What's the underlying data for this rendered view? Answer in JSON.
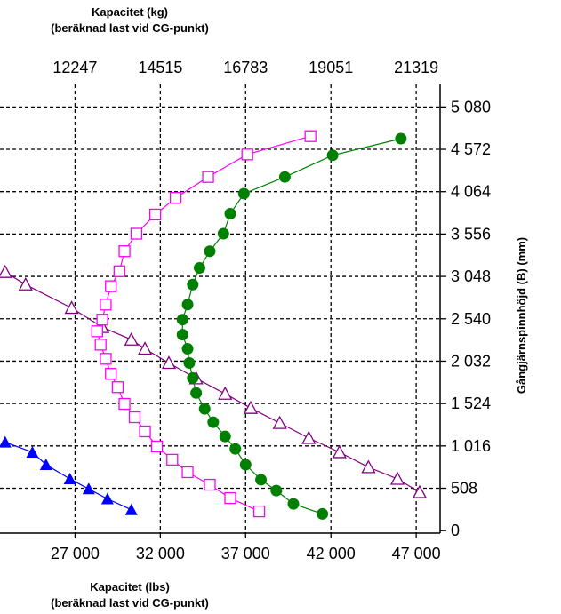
{
  "chart_data": {
    "type": "scatter",
    "title_top": [
      "Kapacitet (kg)",
      "(beräknad last vid CG-punkt)"
    ],
    "title_bottom": [
      "Kapacitet (lbs)",
      "(beräknad last vid CG-punkt)"
    ],
    "ylabel": "Gångjärnspinnhöjd (B) (mm)",
    "x_bottom": {
      "ticks": [
        27000,
        32000,
        37000,
        42000,
        47000
      ],
      "tick_labels": [
        "27 000",
        "32 000",
        "37 000",
        "42 000",
        "47 000"
      ],
      "range": [
        22600,
        48400
      ]
    },
    "x_top": {
      "ticks": [
        27000,
        32000,
        37000,
        42000,
        47000
      ],
      "tick_labels": [
        "12247",
        "14515",
        "16783",
        "19051",
        "21319"
      ]
    },
    "y": {
      "ticks": [
        0,
        508,
        1016,
        1524,
        2032,
        2540,
        3048,
        3556,
        4064,
        4572,
        5080
      ],
      "tick_labels": [
        "0",
        "508",
        "1 016",
        "1 524",
        "2 032",
        "2 540",
        "3 048",
        "3 556",
        "4 064",
        "4 572",
        "5 080"
      ],
      "range": [
        -30,
        5350
      ]
    },
    "grid": true,
    "colors": {
      "triangle_open": "#800080",
      "square_open": "#ff00ff",
      "circle_filled": "#008000",
      "triangle_filled": "#0000ff"
    },
    "series": [
      {
        "marker": "triangle-open",
        "color": "#800080",
        "points": [
          [
            22900,
            3100
          ],
          [
            24100,
            2950
          ],
          [
            26800,
            2670
          ],
          [
            28600,
            2440
          ],
          [
            30300,
            2290
          ],
          [
            31100,
            2180
          ],
          [
            32500,
            2010
          ],
          [
            34100,
            1825
          ],
          [
            35800,
            1640
          ],
          [
            37300,
            1470
          ],
          [
            39000,
            1290
          ],
          [
            40700,
            1110
          ],
          [
            42500,
            940
          ],
          [
            44200,
            760
          ],
          [
            45900,
            620
          ],
          [
            47200,
            460
          ]
        ]
      },
      {
        "marker": "square-open",
        "color": "#ff00ff",
        "points": [
          [
            40800,
            4730
          ],
          [
            37100,
            4510
          ],
          [
            34800,
            4240
          ],
          [
            32900,
            3990
          ],
          [
            31700,
            3790
          ],
          [
            30600,
            3560
          ],
          [
            29900,
            3350
          ],
          [
            29600,
            3110
          ],
          [
            29100,
            2930
          ],
          [
            28800,
            2710
          ],
          [
            28600,
            2530
          ],
          [
            28300,
            2390
          ],
          [
            28500,
            2230
          ],
          [
            28800,
            2060
          ],
          [
            29100,
            1880
          ],
          [
            29500,
            1720
          ],
          [
            29900,
            1520
          ],
          [
            30500,
            1360
          ],
          [
            31100,
            1190
          ],
          [
            31800,
            1010
          ],
          [
            32700,
            850
          ],
          [
            33600,
            700
          ],
          [
            34900,
            550
          ],
          [
            36100,
            390
          ],
          [
            37800,
            230
          ]
        ]
      },
      {
        "marker": "circle-filled",
        "color": "#008000",
        "points": [
          [
            46100,
            4700
          ],
          [
            42100,
            4500
          ],
          [
            39300,
            4240
          ],
          [
            36900,
            4040
          ],
          [
            36100,
            3800
          ],
          [
            35700,
            3560
          ],
          [
            34900,
            3350
          ],
          [
            34300,
            3150
          ],
          [
            33900,
            2950
          ],
          [
            33600,
            2710
          ],
          [
            33300,
            2530
          ],
          [
            33300,
            2350
          ],
          [
            33600,
            2180
          ],
          [
            33700,
            2010
          ],
          [
            33900,
            1830
          ],
          [
            34100,
            1650
          ],
          [
            34600,
            1460
          ],
          [
            35100,
            1300
          ],
          [
            35800,
            1130
          ],
          [
            36400,
            980
          ],
          [
            37000,
            790
          ],
          [
            37900,
            610
          ],
          [
            38800,
            480
          ],
          [
            39800,
            320
          ],
          [
            41500,
            200
          ]
        ]
      },
      {
        "marker": "triangle-filled",
        "color": "#0000ff",
        "points": [
          [
            22900,
            1060
          ],
          [
            24500,
            940
          ],
          [
            25300,
            790
          ],
          [
            26700,
            620
          ],
          [
            27800,
            500
          ],
          [
            28900,
            380
          ],
          [
            30300,
            250
          ]
        ]
      }
    ]
  }
}
